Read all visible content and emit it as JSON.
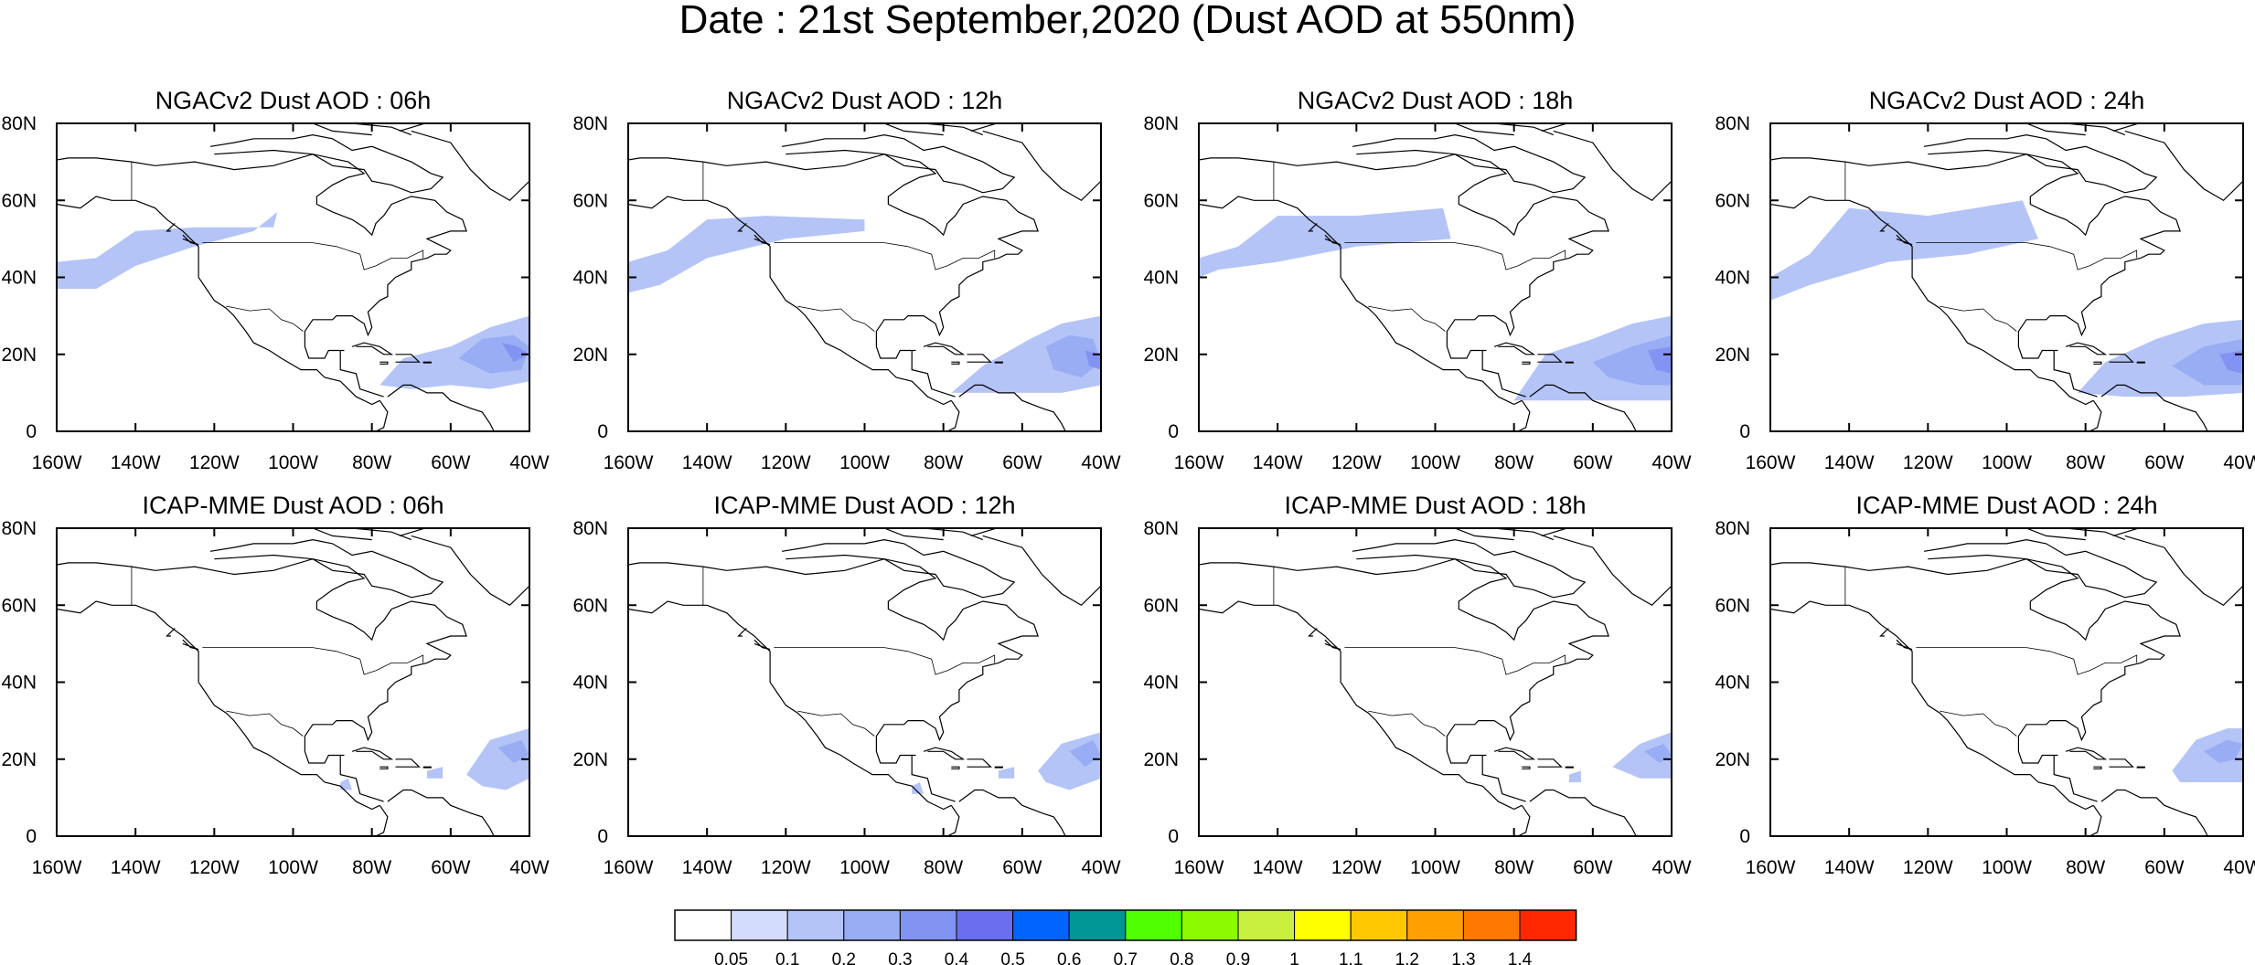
{
  "title": "Date : 21st September,2020 (Dust AOD at 550nm)",
  "x_tick_labels": [
    "160W",
    "140W",
    "120W",
    "100W",
    "80W",
    "60W",
    "40W"
  ],
  "y_tick_labels": [
    "0",
    "20N",
    "40N",
    "60N",
    "80N"
  ],
  "map_extent": {
    "lon": [
      -160,
      -40
    ],
    "lat": [
      0,
      80
    ]
  },
  "panels": [
    {
      "title": "NGACv2 Dust AOD : 06h",
      "dust": [
        {
          "lonlat": [
            [
              -160,
              44
            ],
            [
              -150,
              45
            ],
            [
              -140,
              52
            ],
            [
              -125,
              53
            ],
            [
              -105,
              53
            ],
            [
              -104,
              57
            ],
            [
              -110,
              52
            ],
            [
              -125,
              48
            ],
            [
              -140,
              43
            ],
            [
              -150,
              37
            ],
            [
              -160,
              37
            ]
          ],
          "aod": 0.1
        },
        {
          "lonlat": [
            [
              -78,
              12
            ],
            [
              -72,
              19
            ],
            [
              -60,
              22
            ],
            [
              -50,
              27
            ],
            [
              -40,
              30
            ],
            [
              -40,
              13
            ],
            [
              -50,
              11
            ],
            [
              -60,
              12
            ],
            [
              -70,
              11
            ]
          ],
          "aod": 0.1
        },
        {
          "lonlat": [
            [
              -58,
              19
            ],
            [
              -52,
              24
            ],
            [
              -44,
              25
            ],
            [
              -40,
              22
            ],
            [
              -42,
              16
            ],
            [
              -50,
              15
            ]
          ],
          "aod": 0.2
        },
        {
          "lonlat": [
            [
              -47,
              23
            ],
            [
              -43,
              22
            ],
            [
              -40,
              20
            ],
            [
              -44,
              18
            ]
          ],
          "aod": 0.3
        }
      ]
    },
    {
      "title": "NGACv2 Dust AOD : 12h",
      "dust": [
        {
          "lonlat": [
            [
              -160,
              44
            ],
            [
              -150,
              47
            ],
            [
              -140,
              55
            ],
            [
              -125,
              56
            ],
            [
              -100,
              55
            ],
            [
              -100,
              52
            ],
            [
              -120,
              50
            ],
            [
              -140,
              45
            ],
            [
              -152,
              38
            ],
            [
              -160,
              36
            ]
          ],
          "aod": 0.1
        },
        {
          "lonlat": [
            [
              -78,
              10
            ],
            [
              -70,
              17
            ],
            [
              -58,
              24
            ],
            [
              -50,
              28
            ],
            [
              -40,
              30
            ],
            [
              -40,
              12
            ],
            [
              -50,
              10
            ],
            [
              -60,
              10
            ],
            [
              -70,
              10
            ]
          ],
          "aod": 0.1
        },
        {
          "lonlat": [
            [
              -54,
              22
            ],
            [
              -48,
              25
            ],
            [
              -42,
              24
            ],
            [
              -40,
              18
            ],
            [
              -45,
              14
            ],
            [
              -52,
              16
            ]
          ],
          "aod": 0.2
        },
        {
          "lonlat": [
            [
              -44,
              21
            ],
            [
              -40,
              20
            ],
            [
              -40,
              16
            ],
            [
              -43,
              17
            ]
          ],
          "aod": 0.3
        }
      ]
    },
    {
      "title": "NGACv2 Dust AOD : 18h",
      "dust": [
        {
          "lonlat": [
            [
              -160,
              45
            ],
            [
              -150,
              48
            ],
            [
              -140,
              56
            ],
            [
              -120,
              56
            ],
            [
              -98,
              58
            ],
            [
              -96,
              50
            ],
            [
              -120,
              48
            ],
            [
              -140,
              44
            ],
            [
              -155,
              42
            ],
            [
              -160,
              40
            ]
          ],
          "aod": 0.1
        },
        {
          "lonlat": [
            [
              -80,
              8
            ],
            [
              -72,
              20
            ],
            [
              -60,
              24
            ],
            [
              -50,
              28
            ],
            [
              -40,
              30
            ],
            [
              -40,
              8
            ],
            [
              -55,
              8
            ],
            [
              -70,
              8
            ]
          ],
          "aod": 0.1
        },
        {
          "lonlat": [
            [
              -60,
              18
            ],
            [
              -50,
              22
            ],
            [
              -40,
              25
            ],
            [
              -40,
              12
            ],
            [
              -48,
              12
            ],
            [
              -56,
              14
            ]
          ],
          "aod": 0.2
        },
        {
          "lonlat": [
            [
              -46,
              21
            ],
            [
              -40,
              22
            ],
            [
              -40,
              15
            ],
            [
              -44,
              16
            ]
          ],
          "aod": 0.3
        }
      ]
    },
    {
      "title": "NGACv2 Dust AOD : 24h",
      "dust": [
        {
          "lonlat": [
            [
              -160,
              40
            ],
            [
              -150,
              46
            ],
            [
              -140,
              58
            ],
            [
              -120,
              56
            ],
            [
              -96,
              60
            ],
            [
              -92,
              50
            ],
            [
              -110,
              46
            ],
            [
              -130,
              44
            ],
            [
              -150,
              38
            ],
            [
              -160,
              34
            ]
          ],
          "aod": 0.1
        },
        {
          "lonlat": [
            [
              -82,
              10
            ],
            [
              -75,
              18
            ],
            [
              -62,
              24
            ],
            [
              -50,
              28
            ],
            [
              -40,
              29
            ],
            [
              -40,
              10
            ],
            [
              -55,
              9
            ],
            [
              -70,
              9
            ]
          ],
          "aod": 0.1
        },
        {
          "lonlat": [
            [
              -58,
              17
            ],
            [
              -50,
              22
            ],
            [
              -40,
              24
            ],
            [
              -40,
              12
            ],
            [
              -50,
              12
            ]
          ],
          "aod": 0.2
        },
        {
          "lonlat": [
            [
              -46,
              20
            ],
            [
              -40,
              21
            ],
            [
              -40,
              15
            ],
            [
              -44,
              16
            ]
          ],
          "aod": 0.3
        }
      ]
    },
    {
      "title": "ICAP-MME Dust AOD : 06h",
      "dust": [
        {
          "lonlat": [
            [
              -56,
              16
            ],
            [
              -50,
              25
            ],
            [
              -40,
              28
            ],
            [
              -40,
              15
            ],
            [
              -46,
              12
            ],
            [
              -52,
              13
            ]
          ],
          "aod": 0.1
        },
        {
          "lonlat": [
            [
              -48,
              23
            ],
            [
              -42,
              25
            ],
            [
              -40,
              21
            ],
            [
              -44,
              19
            ]
          ],
          "aod": 0.2
        },
        {
          "lonlat": [
            [
              -66,
              17
            ],
            [
              -62,
              18
            ],
            [
              -62,
              15
            ],
            [
              -66,
              15
            ]
          ],
          "aod": 0.1
        },
        {
          "lonlat": [
            [
              -88,
              14
            ],
            [
              -86,
              15
            ],
            [
              -85,
              12
            ],
            [
              -88,
              12
            ]
          ],
          "aod": 0.1
        }
      ]
    },
    {
      "title": "ICAP-MME Dust AOD : 12h",
      "dust": [
        {
          "lonlat": [
            [
              -56,
              17
            ],
            [
              -50,
              24
            ],
            [
              -40,
              27
            ],
            [
              -40,
              15
            ],
            [
              -48,
              12
            ],
            [
              -54,
              14
            ]
          ],
          "aod": 0.1
        },
        {
          "lonlat": [
            [
              -48,
              22
            ],
            [
              -42,
              25
            ],
            [
              -40,
              21
            ],
            [
              -44,
              18
            ]
          ],
          "aod": 0.2
        },
        {
          "lonlat": [
            [
              -66,
              17
            ],
            [
              -62,
              18
            ],
            [
              -62,
              15
            ],
            [
              -66,
              15
            ]
          ],
          "aod": 0.1
        },
        {
          "lonlat": [
            [
              -88,
              13
            ],
            [
              -86,
              14
            ],
            [
              -85,
              11
            ],
            [
              -88,
              11
            ]
          ],
          "aod": 0.1
        }
      ]
    },
    {
      "title": "ICAP-MME Dust AOD : 18h",
      "dust": [
        {
          "lonlat": [
            [
              -55,
              18
            ],
            [
              -48,
              24
            ],
            [
              -40,
              27
            ],
            [
              -40,
              15
            ],
            [
              -48,
              15
            ]
          ],
          "aod": 0.1
        },
        {
          "lonlat": [
            [
              -47,
              22
            ],
            [
              -42,
              24
            ],
            [
              -40,
              21
            ],
            [
              -43,
              19
            ]
          ],
          "aod": 0.2
        },
        {
          "lonlat": [
            [
              -66,
              16
            ],
            [
              -63,
              17
            ],
            [
              -63,
              14
            ],
            [
              -66,
              14
            ]
          ],
          "aod": 0.1
        }
      ]
    },
    {
      "title": "ICAP-MME Dust AOD : 24h",
      "dust": [
        {
          "lonlat": [
            [
              -58,
              17
            ],
            [
              -52,
              25
            ],
            [
              -44,
              28
            ],
            [
              -40,
              28
            ],
            [
              -40,
              14
            ],
            [
              -48,
              14
            ],
            [
              -56,
              14
            ]
          ],
          "aod": 0.1
        },
        {
          "lonlat": [
            [
              -50,
              22
            ],
            [
              -44,
              25
            ],
            [
              -40,
              24
            ],
            [
              -42,
              20
            ],
            [
              -46,
              19
            ]
          ],
          "aod": 0.2
        }
      ]
    }
  ],
  "colorbar": {
    "colors": [
      "#ffffff",
      "#d3dcfa",
      "#b4c4f7",
      "#98adf4",
      "#8393f2",
      "#6a6ff0",
      "#0064ff",
      "#009696",
      "#50ff00",
      "#8cfa00",
      "#c8f03c",
      "#ffff00",
      "#ffc800",
      "#ffa000",
      "#ff7800",
      "#ff2800"
    ],
    "labels": [
      "0.05",
      "0.1",
      "0.2",
      "0.3",
      "0.4",
      "0.5",
      "0.6",
      "0.7",
      "0.8",
      "0.9",
      "1",
      "1.1",
      "1.2",
      "1.3",
      "1.4"
    ],
    "levels": [
      0.05,
      0.1,
      0.2,
      0.3,
      0.4,
      0.5,
      0.6,
      0.7,
      0.8,
      0.9,
      1,
      1.1,
      1.2,
      1.3,
      1.4
    ]
  }
}
